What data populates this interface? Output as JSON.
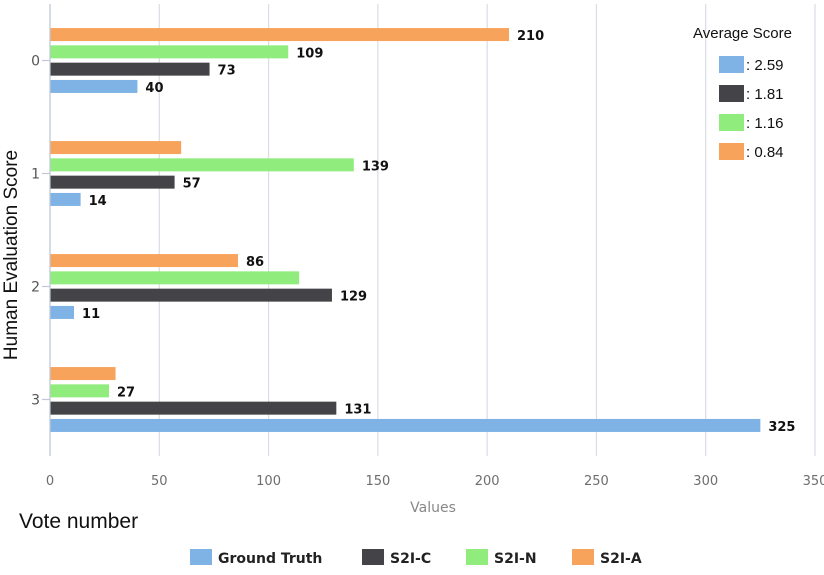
{
  "chart_data": {
    "type": "bar",
    "orientation": "horizontal",
    "categories": [
      "0",
      "1",
      "2",
      "3"
    ],
    "series": [
      {
        "name": "Ground Truth",
        "color": "#7fb2e5",
        "values": [
          40,
          14,
          11,
          325
        ],
        "labels": [
          "40",
          "14",
          "11",
          "325"
        ]
      },
      {
        "name": "S2I-C",
        "color": "#444448",
        "values": [
          73,
          57,
          129,
          131
        ],
        "labels": [
          "73",
          "57",
          "129",
          "131"
        ]
      },
      {
        "name": "S2I-N",
        "color": "#90ec7d",
        "values": [
          109,
          139,
          114,
          27
        ],
        "labels": [
          "109",
          "139",
          "",
          "27"
        ]
      },
      {
        "name": "S2I-A",
        "color": "#f7a35c",
        "values": [
          210,
          60,
          86,
          30
        ],
        "labels": [
          "210",
          "",
          "86",
          ""
        ]
      }
    ],
    "xlim": [
      0,
      350
    ],
    "xticks": [
      "0",
      "50",
      "100",
      "150",
      "200",
      "250",
      "300",
      "350"
    ],
    "xlabel": "Values",
    "ylabel": "Human Evaluation Score",
    "grid": true,
    "legend_position": "bottom"
  },
  "side_label": "Vote  number",
  "average_score": {
    "title": "Average Score",
    "entries": [
      {
        "color": "#7fb2e5",
        "value": ": 2.59"
      },
      {
        "color": "#444448",
        "value": ": 1.81"
      },
      {
        "color": "#90ec7d",
        "value": ": 1.16"
      },
      {
        "color": "#f7a35c",
        "value": ": 0.84"
      }
    ]
  }
}
